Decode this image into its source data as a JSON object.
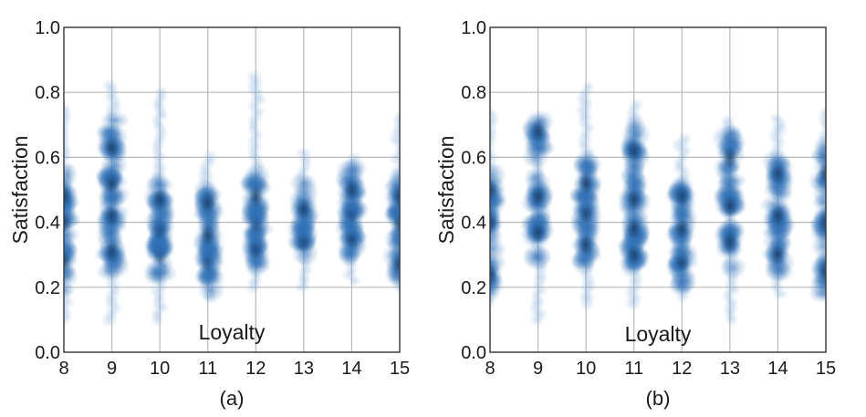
{
  "chart_data": [
    {
      "type": "scatter",
      "panel_label": "(a)",
      "xlabel": "Loyalty",
      "ylabel": "Satisfaction",
      "xlim": [
        8,
        15
      ],
      "ylim": [
        0.0,
        1.0
      ],
      "xticks": [
        "8",
        "9",
        "10",
        "11",
        "12",
        "13",
        "14",
        "15"
      ],
      "yticks": [
        "0.0",
        "0.2",
        "0.4",
        "0.6",
        "0.8",
        "1.0"
      ],
      "grid": true,
      "color": "#2e6fb5",
      "columns": [
        {
          "x": 8,
          "range": [
            0.1,
            0.75
          ],
          "centers": [
            0.28,
            0.4,
            0.48
          ]
        },
        {
          "x": 9,
          "range": [
            0.1,
            0.83
          ],
          "centers": [
            0.31,
            0.42,
            0.52,
            0.63
          ]
        },
        {
          "x": 10,
          "range": [
            0.1,
            0.81
          ],
          "centers": [
            0.3,
            0.38,
            0.47
          ]
        },
        {
          "x": 11,
          "range": [
            0.17,
            0.62
          ],
          "centers": [
            0.28,
            0.36,
            0.46
          ]
        },
        {
          "x": 12,
          "range": [
            0.2,
            0.85
          ],
          "centers": [
            0.32,
            0.4,
            0.48
          ]
        },
        {
          "x": 13,
          "range": [
            0.2,
            0.62
          ],
          "centers": [
            0.34,
            0.44
          ]
        },
        {
          "x": 14,
          "range": [
            0.22,
            0.61
          ],
          "centers": [
            0.35,
            0.43,
            0.5
          ]
        },
        {
          "x": 15,
          "range": [
            0.2,
            0.74
          ],
          "centers": [
            0.27,
            0.4,
            0.48
          ]
        }
      ]
    },
    {
      "type": "scatter",
      "panel_label": "(b)",
      "xlabel": "Loyalty",
      "ylabel": "Satisfaction",
      "xlim": [
        8,
        15
      ],
      "ylim": [
        0.0,
        1.0
      ],
      "xticks": [
        "8",
        "9",
        "10",
        "11",
        "12",
        "13",
        "14",
        "15"
      ],
      "yticks": [
        "0.0",
        "0.2",
        "0.4",
        "0.6",
        "0.8",
        "1.0"
      ],
      "grid": true,
      "color": "#2e6fb5",
      "columns": [
        {
          "x": 8,
          "range": [
            0.15,
            0.75
          ],
          "centers": [
            0.24,
            0.4,
            0.5
          ]
        },
        {
          "x": 9,
          "range": [
            0.1,
            0.72
          ],
          "centers": [
            0.37,
            0.48,
            0.68
          ]
        },
        {
          "x": 10,
          "range": [
            0.15,
            0.83
          ],
          "centers": [
            0.33,
            0.43,
            0.52
          ]
        },
        {
          "x": 11,
          "range": [
            0.15,
            0.78
          ],
          "centers": [
            0.3,
            0.38,
            0.47,
            0.62
          ]
        },
        {
          "x": 12,
          "range": [
            0.17,
            0.67
          ],
          "centers": [
            0.28,
            0.38,
            0.48
          ]
        },
        {
          "x": 13,
          "range": [
            0.1,
            0.73
          ],
          "centers": [
            0.34,
            0.45,
            0.6
          ]
        },
        {
          "x": 14,
          "range": [
            0.18,
            0.73
          ],
          "centers": [
            0.3,
            0.42,
            0.55
          ]
        },
        {
          "x": 15,
          "range": [
            0.18,
            0.75
          ],
          "centers": [
            0.25,
            0.4,
            0.55
          ]
        }
      ]
    }
  ]
}
